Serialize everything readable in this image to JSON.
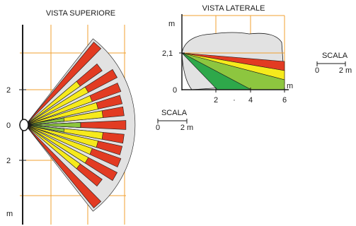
{
  "top_view": {
    "title": "VISTA SUPERIORE",
    "axis_ticks": [
      "2",
      "0",
      "2"
    ],
    "axis_unit": "m"
  },
  "side_view": {
    "title": "VISTA LATERALE",
    "y_unit": "m",
    "mount_height": "2,1",
    "y_origin": "0",
    "x_ticks": [
      "2",
      "4",
      "6"
    ],
    "x_unit": "m",
    "stray_mark": "·"
  },
  "scale_right": {
    "title": "SCALA",
    "left_tick": "0",
    "right_tick": "2 m"
  },
  "scale_bottom": {
    "title": "SCALA",
    "left_tick": "0",
    "right_tick": "2 m"
  },
  "colors": {
    "grid": "#f0a030",
    "red": "#e23b22",
    "yellow": "#f6ea1c",
    "green": "#8dc63f",
    "dark_green": "#2ea84a",
    "coverage_gray": "#e2e2e2",
    "line": "#1a1a1a"
  }
}
